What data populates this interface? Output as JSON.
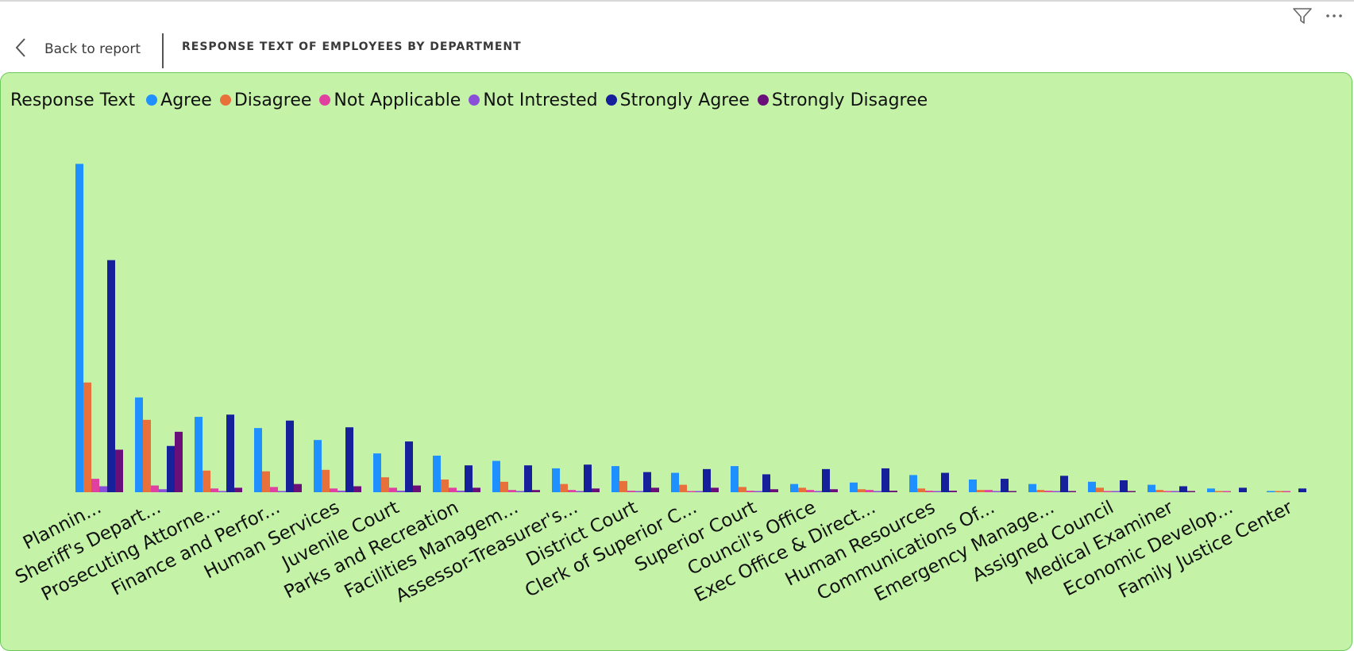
{
  "header": {
    "back_label": "Back to report",
    "title": "RESPONSE TEXT OF EMPLOYEES BY DEPARTMENT"
  },
  "toolbar": {
    "filter_icon": "filter-icon",
    "more_icon": "more-options-icon"
  },
  "colors": {
    "panel_bg": "#c4f3a8",
    "panel_border": "#6cc85a"
  },
  "chart_data": {
    "type": "bar",
    "legend_title": "Response Text",
    "legend_position": "top-left",
    "grid": false,
    "categories": [
      "Plannin...",
      "Sheriff's Depart...",
      "Prosecuting Attorne...",
      "Finance and Perfor...",
      "Human Services",
      "Juvenile Court",
      "Parks and Recreation",
      "Facilities Managem...",
      "Assessor-Treasurer's...",
      "District Court",
      "Clerk of Superior C...",
      "Superior Court",
      "Council's Office",
      "Exec Office & Direct...",
      "Human Resources",
      "Communications Of...",
      "Emergency Manage...",
      "Assigned Council",
      "Medical Examiner",
      "Economic Develop...",
      "Family Justice Center"
    ],
    "ylim": [
      0,
      500
    ],
    "series": [
      {
        "name": "Agree",
        "color": "#1e90ff",
        "values": [
          440,
          127,
          101,
          86,
          70,
          52,
          49,
          42,
          32,
          35,
          26,
          35,
          11,
          13,
          23,
          17,
          11,
          14,
          10,
          5,
          1
        ]
      },
      {
        "name": "Disagree",
        "color": "#e8703a",
        "values": [
          147,
          97,
          29,
          28,
          30,
          20,
          17,
          14,
          11,
          15,
          10,
          7,
          6,
          4,
          5,
          3,
          3,
          6,
          3,
          1,
          1
        ]
      },
      {
        "name": "Not Applicable",
        "color": "#e040a0",
        "values": [
          18,
          9,
          5,
          7,
          5,
          6,
          6,
          3,
          3,
          2,
          1,
          2,
          3,
          3,
          2,
          3,
          2,
          1,
          1,
          1,
          1
        ]
      },
      {
        "name": "Not Intrested",
        "color": "#8a4fd8",
        "values": [
          8,
          4,
          1,
          1,
          2,
          2,
          2,
          1,
          1,
          1,
          1,
          1,
          1,
          1,
          1,
          1,
          1,
          1,
          1,
          0,
          0
        ]
      },
      {
        "name": "Strongly Agree",
        "color": "#16209a",
        "values": [
          311,
          62,
          104,
          96,
          87,
          68,
          36,
          36,
          37,
          27,
          31,
          24,
          31,
          32,
          26,
          18,
          22,
          16,
          8,
          6,
          5
        ]
      },
      {
        "name": "Strongly Disagree",
        "color": "#6a0f7a",
        "values": [
          57,
          81,
          6,
          11,
          8,
          9,
          6,
          3,
          5,
          6,
          6,
          4,
          4,
          2,
          2,
          1,
          1,
          1,
          1,
          0,
          0
        ]
      }
    ]
  }
}
